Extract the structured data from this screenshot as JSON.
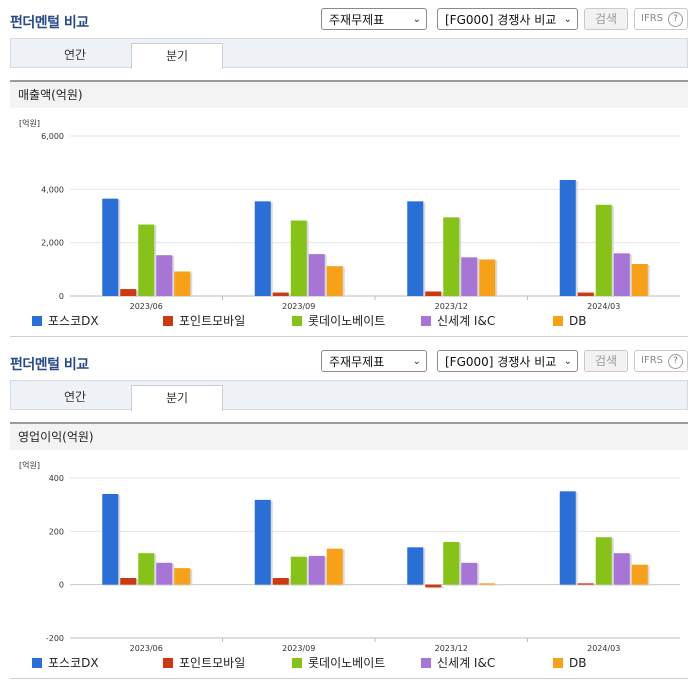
{
  "panels": [
    {
      "header_title": "펀더멘털 비교",
      "select_report": "주재무제표",
      "select_group": "[FG000] 경쟁사 비교",
      "search_label": "검색",
      "ifrs_label": "IFRS",
      "help_glyph": "?",
      "tabs": [
        "연간",
        "분기"
      ],
      "active_tab": 1,
      "section_title": "매출액(억원)",
      "unit_label": "[억원]"
    },
    {
      "header_title": "펀더멘털 비교",
      "select_report": "주재무제표",
      "select_group": "[FG000] 경쟁사 비교",
      "search_label": "검색",
      "ifrs_label": "IFRS",
      "help_glyph": "?",
      "tabs": [
        "연간",
        "분기"
      ],
      "active_tab": 1,
      "section_title": "영업이익(억원)",
      "unit_label": "[억원]"
    }
  ],
  "chart_data": [
    {
      "type": "bar",
      "title": "매출액(억원)",
      "ylabel": "[억원]",
      "categories": [
        "2023/06",
        "2023/09",
        "2023/12",
        "2024/03"
      ],
      "ylim": [
        0,
        6000
      ],
      "yticks": [
        0,
        2000,
        4000,
        6000
      ],
      "ytick_labels": [
        "0",
        "2,000",
        "4,000",
        "6,000"
      ],
      "grid": true,
      "legend_position": "bottom",
      "series": [
        {
          "name": "포스코DX",
          "color": "#2a6fd6",
          "values": [
            3650,
            3550,
            3550,
            4350
          ]
        },
        {
          "name": "포인트모바일",
          "color": "#cc3a14",
          "values": [
            260,
            130,
            170,
            130
          ]
        },
        {
          "name": "롯데이노베이트",
          "color": "#86c21a",
          "values": [
            2680,
            2830,
            2950,
            3420
          ]
        },
        {
          "name": "신세계 I&C",
          "color": "#a675d6",
          "values": [
            1530,
            1570,
            1450,
            1600
          ]
        },
        {
          "name": "DB",
          "color": "#f7a11a",
          "values": [
            920,
            1120,
            1370,
            1200
          ]
        }
      ]
    },
    {
      "type": "bar",
      "title": "영업이익(억원)",
      "ylabel": "[억원]",
      "categories": [
        "2023/06",
        "2023/09",
        "2023/12",
        "2024/03"
      ],
      "ylim": [
        -200,
        400
      ],
      "yticks": [
        -200,
        0,
        200,
        400
      ],
      "ytick_labels": [
        "-200",
        "0",
        "200",
        "400"
      ],
      "grid": true,
      "legend_position": "bottom",
      "series": [
        {
          "name": "포스코DX",
          "color": "#2a6fd6",
          "values": [
            340,
            318,
            140,
            350
          ]
        },
        {
          "name": "포인트모바일",
          "color": "#cc3a14",
          "values": [
            25,
            25,
            -10,
            5
          ]
        },
        {
          "name": "롯데이노베이트",
          "color": "#86c21a",
          "values": [
            118,
            105,
            160,
            178
          ]
        },
        {
          "name": "신세계 I&C",
          "color": "#a675d6",
          "values": [
            82,
            108,
            82,
            118
          ]
        },
        {
          "name": "DB",
          "color": "#f7a11a",
          "values": [
            62,
            135,
            5,
            75
          ]
        }
      ]
    }
  ]
}
